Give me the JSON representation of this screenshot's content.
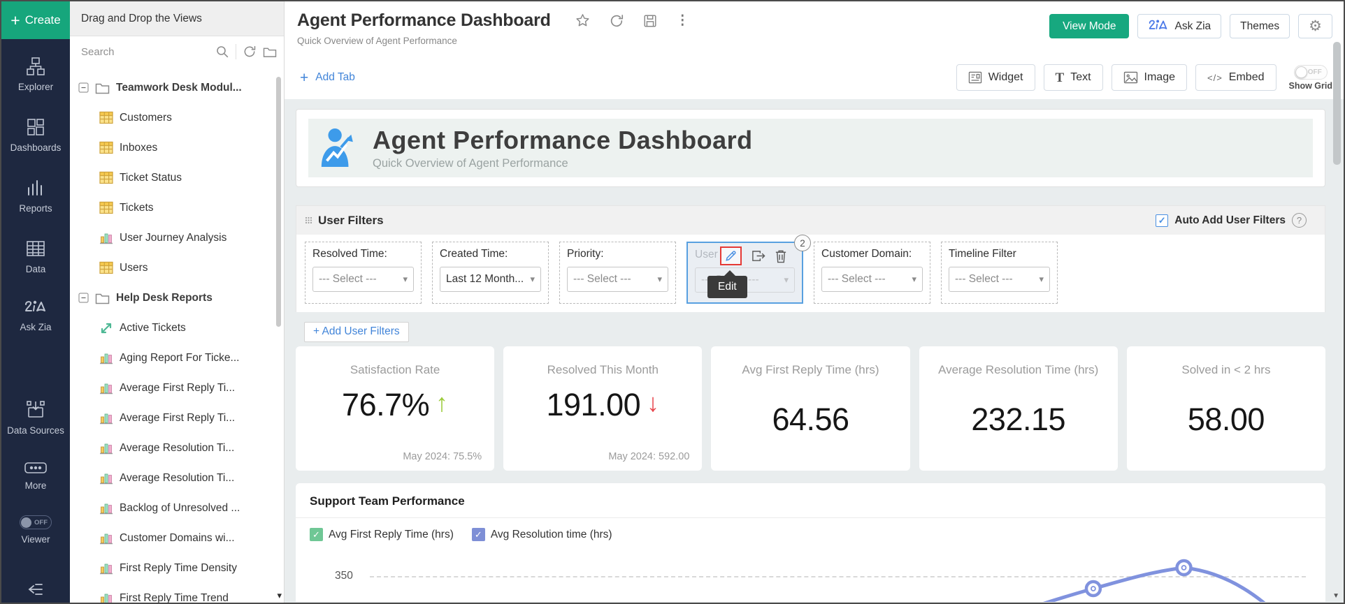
{
  "colors": {
    "accent_green": "#16a67c",
    "accent_blue": "#4285d9",
    "sidebar_bg": "#1e2840",
    "selection_blue": "#58a0e0",
    "edit_highlight_red": "#e53935",
    "kpi_up_green": "#9ccb3b",
    "kpi_down_red": "#e8474e",
    "legend_green": "#6fc795",
    "legend_purple": "#7e8fd6",
    "chart_line": "#8092de"
  },
  "sidebar": {
    "create_label": "Create",
    "items": [
      {
        "label": "Explorer",
        "icon": "explorer-icon"
      },
      {
        "label": "Dashboards",
        "icon": "dashboards-icon"
      },
      {
        "label": "Reports",
        "icon": "reports-icon"
      },
      {
        "label": "Data",
        "icon": "data-table-icon"
      },
      {
        "label": "Ask Zia",
        "icon": "zia-icon"
      },
      {
        "label": "Data Sources",
        "icon": "data-sources-icon"
      },
      {
        "label": "More",
        "icon": "more-icon"
      },
      {
        "label": "Viewer",
        "icon": "viewer-toggle",
        "toggle_state": "OFF"
      }
    ]
  },
  "views_panel": {
    "header": "Drag and Drop the Views",
    "search_placeholder": "Search",
    "tree": [
      {
        "label": "Teamwork Desk Modul...",
        "icon": "folder",
        "level": 0,
        "expanded": true
      },
      {
        "label": "Customers",
        "icon": "table",
        "level": 1
      },
      {
        "label": "Inboxes",
        "icon": "table",
        "level": 1
      },
      {
        "label": "Ticket Status",
        "icon": "table",
        "level": 1
      },
      {
        "label": "Tickets",
        "icon": "table",
        "level": 1
      },
      {
        "label": "User Journey Analysis",
        "icon": "chart",
        "level": 1
      },
      {
        "label": "Users",
        "icon": "table",
        "level": 1
      },
      {
        "label": "Help Desk Reports",
        "icon": "folder",
        "level": 0,
        "expanded": true
      },
      {
        "label": "Active Tickets",
        "icon": "pivot",
        "level": 1
      },
      {
        "label": "Aging Report For Ticke...",
        "icon": "chart",
        "level": 1
      },
      {
        "label": "Average First Reply Ti...",
        "icon": "chart",
        "level": 1
      },
      {
        "label": "Average First Reply Ti...",
        "icon": "chart",
        "level": 1
      },
      {
        "label": "Average Resolution Ti...",
        "icon": "chart",
        "level": 1
      },
      {
        "label": "Average Resolution Ti...",
        "icon": "chart",
        "level": 1
      },
      {
        "label": "Backlog of Unresolved ...",
        "icon": "chart",
        "level": 1
      },
      {
        "label": "Customer Domains wi...",
        "icon": "chart",
        "level": 1
      },
      {
        "label": "First Reply Time Density",
        "icon": "chart",
        "level": 1
      },
      {
        "label": "First Reply Time Trend",
        "icon": "chart",
        "level": 1
      }
    ]
  },
  "header": {
    "title": "Agent Performance Dashboard",
    "subtitle": "Quick Overview of Agent Performance",
    "buttons": {
      "view_mode": "View Mode",
      "ask_zia": "Ask Zia",
      "themes": "Themes"
    }
  },
  "toolbar": {
    "add_tab": "Add Tab",
    "widget": "Widget",
    "text": "Text",
    "image": "Image",
    "embed": "Embed",
    "show_grid_label": "Show Grid",
    "show_grid_state": "OFF"
  },
  "banner": {
    "title": "Agent Performance Dashboard",
    "subtitle": "Quick Overview of Agent Performance"
  },
  "user_filters": {
    "title": "User Filters",
    "auto_add_label": "Auto Add User Filters",
    "auto_add_checked": true,
    "add_link": "+ Add User Filters",
    "edit_tooltip": "Edit",
    "selected_badge": "2",
    "filters": [
      {
        "label": "Resolved Time:",
        "value": "--- Select ---"
      },
      {
        "label": "Created Time:",
        "value": "Last 12 Month..."
      },
      {
        "label": "Priority:",
        "value": "--- Select ---"
      },
      {
        "label": "User",
        "value": "--- Select ---",
        "selected": true
      },
      {
        "label": "Customer Domain:",
        "value": "--- Select ---"
      },
      {
        "label": "Timeline Filter",
        "value": "--- Select ---"
      }
    ]
  },
  "kpi_cards": [
    {
      "title": "Satisfaction Rate",
      "value": "76.7%",
      "trend": "up",
      "footnote": "May 2024: 75.5%"
    },
    {
      "title": "Resolved This Month",
      "value": "191.00",
      "trend": "down",
      "footnote": "May 2024: 592.00"
    },
    {
      "title": "Avg First Reply Time (hrs)",
      "value": "64.56"
    },
    {
      "title": "Average Resolution Time (hrs)",
      "value": "232.15"
    },
    {
      "title": "Solved in < 2 hrs",
      "value": "58.00"
    }
  ],
  "chart_section": {
    "title": "Support Team Performance",
    "legend": [
      {
        "label": "Avg First Reply Time (hrs)",
        "color": "#6fc795"
      },
      {
        "label": "Avg Resolution time (hrs)",
        "color": "#7e8fd6"
      }
    ],
    "y_gridline_label": "350"
  },
  "chart_data": {
    "type": "line",
    "series": [
      {
        "name": "Avg First Reply Time (hrs)"
      },
      {
        "name": "Avg Resolution time (hrs)"
      }
    ],
    "visible_gridline": 350,
    "note": "chart partially visible; one series curve with markers peaks slightly above the 350 gridline"
  }
}
